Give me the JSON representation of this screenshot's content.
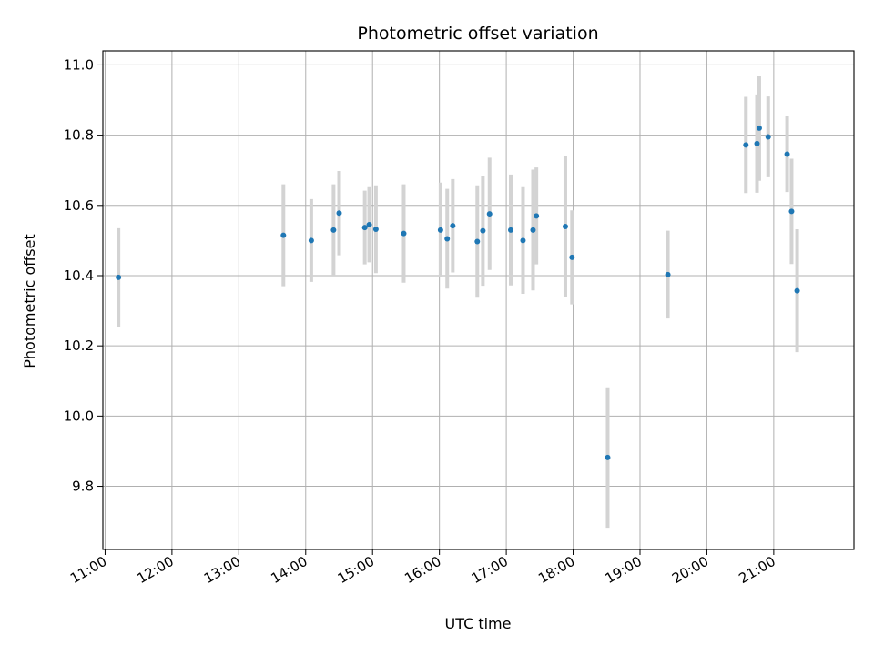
{
  "chart_data": {
    "type": "scatter",
    "title": "Photometric offset variation",
    "xlabel": "UTC time",
    "ylabel": "Photometric offset",
    "xlim": [
      "10:58",
      "22:12"
    ],
    "ylim": [
      9.62,
      11.04
    ],
    "xticks": [
      "11:00",
      "12:00",
      "13:00",
      "14:00",
      "15:00",
      "16:00",
      "17:00",
      "18:00",
      "19:00",
      "20:00",
      "21:00"
    ],
    "yticks": [
      9.8,
      10.0,
      10.2,
      10.4,
      10.6,
      10.8,
      11.0
    ],
    "ytick_labels": [
      "9.8",
      "10.0",
      "10.2",
      "10.4",
      "10.6",
      "10.8",
      "11.0"
    ],
    "grid": true,
    "legend": "none",
    "colors": {
      "point": "#1f77b4",
      "errorbar": "#d3d3d3",
      "grid": "#b0b0b0"
    },
    "points": [
      {
        "x": "11:12",
        "y": 10.395,
        "err": 0.14
      },
      {
        "x": "13:40",
        "y": 10.515,
        "err": 0.145
      },
      {
        "x": "14:05",
        "y": 10.5,
        "err": 0.118
      },
      {
        "x": "14:25",
        "y": 10.53,
        "err": 0.13
      },
      {
        "x": "14:30",
        "y": 10.578,
        "err": 0.12
      },
      {
        "x": "14:53",
        "y": 10.537,
        "err": 0.105
      },
      {
        "x": "14:57",
        "y": 10.545,
        "err": 0.107
      },
      {
        "x": "15:03",
        "y": 10.532,
        "err": 0.125
      },
      {
        "x": "15:28",
        "y": 10.52,
        "err": 0.14
      },
      {
        "x": "16:01",
        "y": 10.53,
        "err": 0.135
      },
      {
        "x": "16:07",
        "y": 10.505,
        "err": 0.142
      },
      {
        "x": "16:12",
        "y": 10.542,
        "err": 0.133
      },
      {
        "x": "16:34",
        "y": 10.497,
        "err": 0.16
      },
      {
        "x": "16:39",
        "y": 10.528,
        "err": 0.157
      },
      {
        "x": "16:45",
        "y": 10.576,
        "err": 0.16
      },
      {
        "x": "17:04",
        "y": 10.53,
        "err": 0.158
      },
      {
        "x": "17:15",
        "y": 10.5,
        "err": 0.152
      },
      {
        "x": "17:24",
        "y": 10.53,
        "err": 0.172
      },
      {
        "x": "17:27",
        "y": 10.57,
        "err": 0.138
      },
      {
        "x": "17:53",
        "y": 10.54,
        "err": 0.202
      },
      {
        "x": "17:59",
        "y": 10.452,
        "err": 0.134
      },
      {
        "x": "18:31",
        "y": 9.882,
        "err": 0.2
      },
      {
        "x": "19:25",
        "y": 10.403,
        "err": 0.125
      },
      {
        "x": "20:35",
        "y": 10.772,
        "err": 0.137
      },
      {
        "x": "20:45",
        "y": 10.776,
        "err": 0.14
      },
      {
        "x": "20:47",
        "y": 10.82,
        "err": 0.15
      },
      {
        "x": "20:55",
        "y": 10.795,
        "err": 0.115
      },
      {
        "x": "21:12",
        "y": 10.746,
        "err": 0.108
      },
      {
        "x": "21:16",
        "y": 10.583,
        "err": 0.15
      },
      {
        "x": "21:21",
        "y": 10.357,
        "err": 0.175
      }
    ]
  }
}
